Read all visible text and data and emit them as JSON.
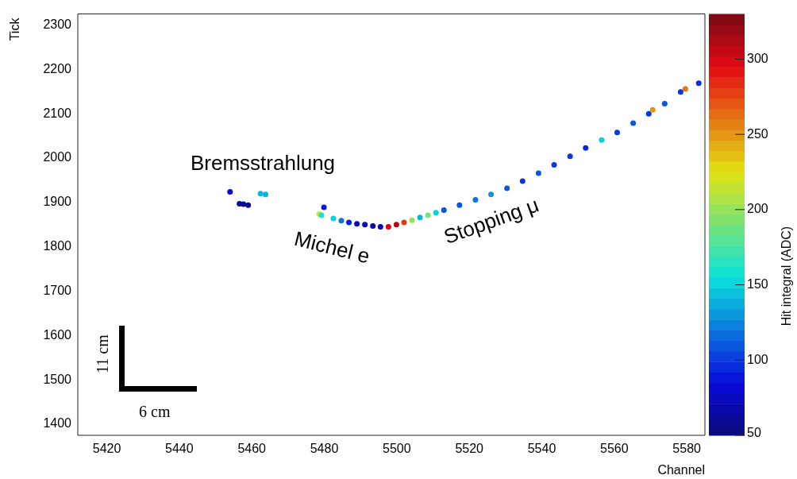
{
  "chart_data": {
    "type": "scatter",
    "xlabel": "Channel",
    "ylabel": "Tick",
    "clabel": "Hit integral (ADC)",
    "xlim": [
      5412,
      5585
    ],
    "xticks": [
      5420,
      5440,
      5460,
      5480,
      5500,
      5520,
      5540,
      5560,
      5580
    ],
    "ylim": [
      1375,
      2325
    ],
    "yticks": [
      1400,
      1500,
      1600,
      1700,
      1800,
      1900,
      2000,
      2100,
      2200,
      2300
    ],
    "clim": [
      50,
      330
    ],
    "cticks": [
      50,
      100,
      150,
      200,
      250,
      300
    ],
    "marker": "circle",
    "x": [
      5454,
      5456.6,
      5457.7,
      5459,
      5462.4,
      5463.8,
      5479.9,
      5478.6,
      5479.2,
      5482.5,
      5484.7,
      5486.8,
      5489,
      5491.2,
      5493.4,
      5495.5,
      5497.7,
      5499.9,
      5502,
      5504.2,
      5506.4,
      5508.6,
      5510.8,
      5513,
      5517.3,
      5521.7,
      5526,
      5530.4,
      5534.7,
      5539.1,
      5543.4,
      5547.8,
      5552.1,
      5556.5,
      5560.8,
      5565.2,
      5569.5,
      5570.6,
      5573.9,
      5578.3,
      5579.6,
      5583.3
    ],
    "values": [
      1924,
      1897,
      1896,
      1894,
      1920,
      1918,
      1889,
      1874,
      1871,
      1864,
      1859,
      1855,
      1852,
      1850,
      1847,
      1845,
      1845,
      1850,
      1855,
      1860,
      1866,
      1871,
      1877,
      1883,
      1894,
      1906,
      1918,
      1932,
      1948,
      1966,
      1985,
      2004,
      2023,
      2041,
      2058,
      2079,
      2100,
      2109,
      2123,
      2149,
      2156,
      2169
    ],
    "cvalues": [
      80,
      60,
      60,
      60,
      140,
      140,
      90,
      220,
      160,
      150,
      120,
      90,
      75,
      70,
      70,
      70,
      300,
      310,
      280,
      200,
      140,
      190,
      150,
      110,
      110,
      120,
      130,
      110,
      100,
      110,
      100,
      100,
      95,
      150,
      100,
      110,
      100,
      250,
      110,
      100,
      260,
      95
    ],
    "annotations": [
      "Bremsstrahlung",
      "Michel e",
      "Stopping μ",
      "11 cm",
      "6 cm"
    ]
  }
}
